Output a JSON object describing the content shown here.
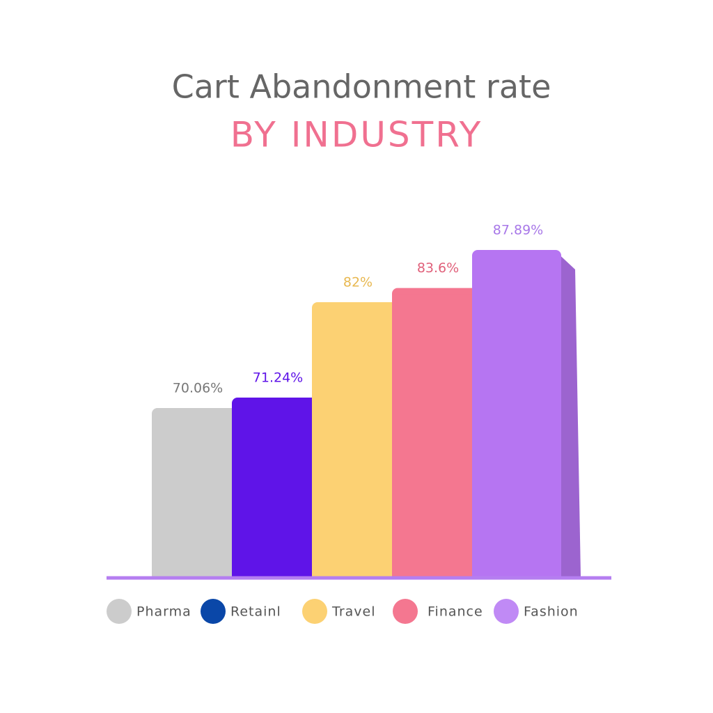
{
  "chart_data": {
    "type": "bar3d",
    "title": "Cart Abandonment rate",
    "subtitle": "BY INDUSTRY",
    "categories": [
      "Pharma",
      "Retainl",
      "Travel",
      "Finance",
      "Fashion"
    ],
    "values": [
      70.06,
      71.24,
      82,
      83.6,
      87.89
    ],
    "value_labels": [
      "70.06%",
      "71.24%",
      "82%",
      "83.6%",
      "87.89%"
    ],
    "colors": [
      "#cccccc",
      "#5f14e8",
      "#fcd173",
      "#f47790",
      "#b675f2"
    ],
    "legend_colors": [
      "#cccccc",
      "#0a47a8",
      "#fcd173",
      "#f47790",
      "#c08af5"
    ],
    "label_colors": [
      "#777777",
      "#5f14e8",
      "#e8b850",
      "#e0607a",
      "#a878e8"
    ]
  }
}
